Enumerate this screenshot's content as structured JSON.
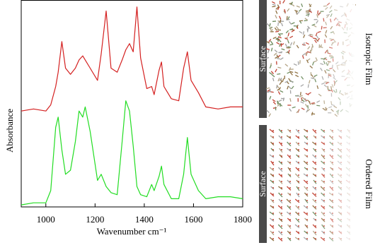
{
  "chart_data": {
    "type": "line",
    "xlabel": "Wavenumber cm⁻¹",
    "ylabel": "Absorbance",
    "xlim": [
      900,
      1800
    ],
    "xticks": [
      1000,
      1200,
      1400,
      1600,
      1800
    ],
    "ylim": [
      0,
      100
    ],
    "x": [
      900,
      950,
      1000,
      1020,
      1040,
      1050,
      1065,
      1080,
      1100,
      1120,
      1135,
      1150,
      1160,
      1180,
      1210,
      1225,
      1245,
      1265,
      1290,
      1310,
      1325,
      1340,
      1355,
      1370,
      1385,
      1410,
      1430,
      1440,
      1460,
      1470,
      1480,
      1510,
      1540,
      1560,
      1575,
      1590,
      1620,
      1650,
      1700,
      1750,
      1800
    ],
    "series": [
      {
        "name": "Isotropic Film",
        "color": "#d42020",
        "values": [
          47,
          48,
          47,
          50,
          59,
          66,
          81,
          68,
          65,
          68,
          72,
          74,
          72,
          68,
          62,
          75,
          96,
          68,
          66,
          72,
          77,
          80,
          76,
          98,
          73,
          58,
          59,
          55,
          67,
          71,
          59,
          53,
          52,
          68,
          76,
          62,
          56,
          49,
          48,
          49,
          49
        ]
      },
      {
        "name": "Ordered Film",
        "color": "#22dd22",
        "values": [
          1,
          2,
          2,
          8,
          39,
          44,
          28,
          16,
          18,
          32,
          47,
          44,
          49,
          37,
          13,
          16,
          10,
          7,
          6,
          32,
          52,
          47,
          30,
          10,
          6,
          5,
          11,
          8,
          15,
          20,
          11,
          4,
          4,
          16,
          34,
          16,
          8,
          4,
          5,
          5,
          4
        ]
      }
    ]
  },
  "panels": [
    {
      "surface_label": "Surface",
      "caption": "Isotropic Film"
    },
    {
      "surface_label": "Surface",
      "caption": "Ordered Film"
    }
  ]
}
